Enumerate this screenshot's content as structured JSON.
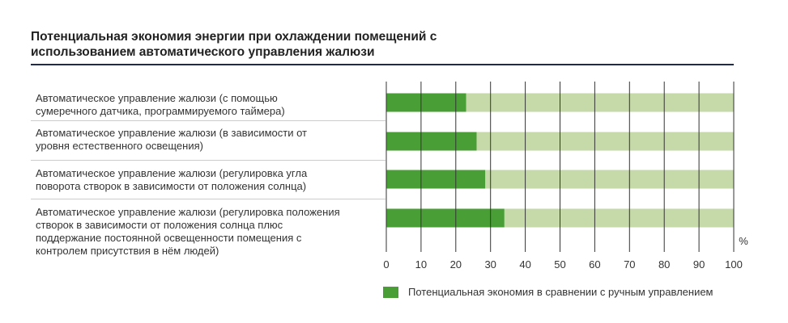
{
  "chart_data": {
    "type": "bar",
    "orientation": "horizontal",
    "stacked": true,
    "title": "Потенциальная экономия энергии при охлаждении помещений с использованием автоматического управления жалюзи",
    "title_lines": [
      "Потенциальная экономия энергии при охлаждении помещений с",
      "использованием автоматического управления жалюзи"
    ],
    "categories": [
      [
        "Автоматическое управление жалюзи (с помощью",
        "сумеречного датчика, программируемого таймера)"
      ],
      [
        "Автоматическое управление жалюзи (в зависимости от",
        "уровня естественного освещения)"
      ],
      [
        "Автоматическое управление жалюзи (регулировка угла",
        "поворота створок в зависимости от положения солнца)"
      ],
      [
        "Автоматическое управление жалюзи (регулировка положения",
        "створок в зависимости от положения солнца плюс",
        "поддержание постоянной освещенности помещения с",
        "контролем присутствия в нём людей)"
      ]
    ],
    "series": [
      {
        "name": "Потенциальная экономия в сравнении с ручным управлением",
        "values": [
          23,
          26,
          28.5,
          34
        ],
        "color": "#4a9e36"
      },
      {
        "values": [
          77,
          74,
          71.5,
          66
        ],
        "color": "#c6d9a9"
      }
    ],
    "xlim": [
      0,
      100
    ],
    "xticks": [
      "0",
      "10",
      "20",
      "30",
      "40",
      "50",
      "60",
      "70",
      "80",
      "90",
      "100"
    ],
    "unit_label": "%",
    "grid": true,
    "legend_position": "bottom"
  }
}
